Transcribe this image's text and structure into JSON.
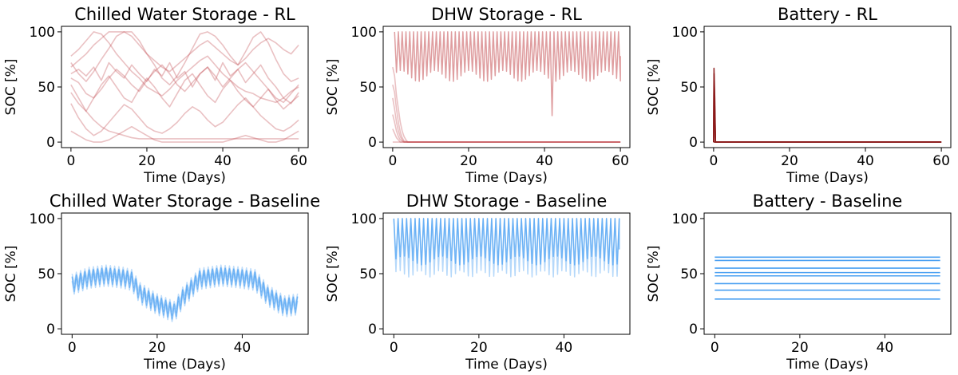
{
  "chart_data": [
    {
      "type": "line",
      "title": "Chilled Water Storage - RL",
      "xlabel": "Time (Days)",
      "ylabel": "SOC [%]",
      "xlim": [
        -2.5,
        62.5
      ],
      "ylim": [
        -5,
        105
      ],
      "xticks": [
        0,
        20,
        40,
        60
      ],
      "yticks": [
        0,
        50,
        100
      ],
      "color": "#c44e52",
      "series": [
        {
          "x": [
            0,
            2,
            4,
            6,
            8,
            10,
            12,
            14,
            16,
            18,
            20,
            22,
            24,
            26,
            28,
            30,
            32,
            34,
            36,
            38,
            40,
            42,
            44,
            46,
            48,
            50,
            52,
            54,
            56,
            58,
            60
          ],
          "y": [
            72,
            62,
            55,
            64,
            75,
            85,
            96,
            100,
            100,
            92,
            80,
            70,
            58,
            52,
            60,
            72,
            85,
            98,
            100,
            96,
            88,
            78,
            70,
            82,
            95,
            100,
            90,
            75,
            62,
            55,
            58
          ]
        },
        {
          "x": [
            0,
            2,
            4,
            6,
            8,
            10,
            12,
            14,
            16,
            18,
            20,
            22,
            24,
            26,
            28,
            30,
            32,
            34,
            36,
            38,
            40,
            42,
            44,
            46,
            48,
            50,
            52,
            54,
            56,
            58,
            60
          ],
          "y": [
            62,
            66,
            60,
            68,
            56,
            72,
            64,
            58,
            70,
            62,
            55,
            66,
            60,
            72,
            58,
            64,
            50,
            62,
            68,
            56,
            72,
            60,
            66,
            54,
            62,
            70,
            58,
            50,
            40,
            35,
            45
          ]
        },
        {
          "x": [
            0,
            2,
            4,
            6,
            8,
            10,
            12,
            14,
            16,
            18,
            20,
            22,
            24,
            26,
            28,
            30,
            32,
            34,
            36,
            38,
            40,
            42,
            44,
            46,
            48,
            50,
            52,
            54,
            56,
            58,
            60
          ],
          "y": [
            58,
            54,
            44,
            40,
            48,
            58,
            66,
            60,
            52,
            46,
            56,
            64,
            70,
            62,
            52,
            46,
            54,
            62,
            68,
            60,
            50,
            58,
            66,
            72,
            64,
            56,
            48,
            40,
            36,
            44,
            52
          ]
        },
        {
          "x": [
            0,
            2,
            4,
            6,
            8,
            10,
            12,
            14,
            16,
            18,
            20,
            22,
            24,
            26,
            28,
            30,
            32,
            34,
            36,
            38,
            40,
            42,
            44,
            46,
            48,
            50,
            52,
            54,
            56,
            58,
            60
          ],
          "y": [
            45,
            35,
            28,
            40,
            52,
            60,
            50,
            40,
            36,
            48,
            58,
            50,
            40,
            32,
            44,
            56,
            62,
            52,
            42,
            36,
            48,
            56,
            46,
            38,
            32,
            40,
            48,
            38,
            30,
            36,
            42
          ]
        },
        {
          "x": [
            0,
            2,
            4,
            6,
            8,
            10,
            12,
            14,
            16,
            18,
            20,
            22,
            24,
            26,
            28,
            30,
            32,
            34,
            36,
            38,
            40,
            42,
            44,
            46,
            48,
            50,
            52,
            54,
            56,
            58,
            60
          ],
          "y": [
            78,
            84,
            92,
            100,
            98,
            90,
            80,
            72,
            64,
            58,
            50,
            46,
            42,
            48,
            56,
            62,
            68,
            74,
            78,
            70,
            62,
            56,
            50,
            46,
            44,
            40,
            38,
            36,
            40,
            46,
            50
          ]
        },
        {
          "x": [
            0,
            2,
            4,
            6,
            8,
            10,
            12,
            14,
            16,
            18,
            20,
            22,
            24,
            26,
            28,
            30,
            32,
            34,
            36,
            38,
            40,
            42,
            44,
            46,
            48,
            50,
            52,
            54,
            56,
            58,
            60
          ],
          "y": [
            35,
            22,
            12,
            6,
            10,
            18,
            26,
            34,
            30,
            22,
            14,
            10,
            8,
            12,
            18,
            26,
            32,
            28,
            20,
            14,
            18,
            26,
            34,
            40,
            32,
            24,
            18,
            12,
            10,
            14,
            20
          ]
        },
        {
          "x": [
            0,
            2,
            4,
            6,
            8,
            10,
            12,
            14,
            16,
            18,
            20,
            22,
            24,
            26,
            28,
            30,
            32,
            34,
            36,
            38,
            40,
            42,
            44,
            46,
            48,
            50,
            52,
            54,
            56,
            58,
            60
          ],
          "y": [
            52,
            40,
            28,
            20,
            14,
            10,
            8,
            6,
            4,
            3,
            3,
            3,
            3,
            3,
            3,
            3,
            3,
            3,
            3,
            3,
            3,
            3,
            3,
            3,
            3,
            3,
            3,
            3,
            3,
            3,
            3
          ]
        },
        {
          "x": [
            0,
            2,
            4,
            6,
            8,
            10,
            12,
            14,
            16,
            18,
            20,
            22,
            24,
            26,
            28,
            30,
            32,
            34,
            36,
            38,
            40,
            42,
            44,
            46,
            48,
            50,
            52,
            54,
            56,
            58,
            60
          ],
          "y": [
            10,
            6,
            2,
            0,
            0,
            2,
            6,
            10,
            14,
            10,
            6,
            2,
            0,
            0,
            0,
            0,
            0,
            0,
            0,
            0,
            0,
            2,
            4,
            6,
            4,
            2,
            0,
            0,
            2,
            6,
            10
          ]
        },
        {
          "x": [
            0,
            2,
            4,
            6,
            8,
            10,
            12,
            14,
            16,
            18,
            20,
            22,
            24,
            26,
            28,
            30,
            32,
            34,
            36,
            38,
            40,
            42,
            44,
            46,
            48,
            50,
            52,
            54,
            56,
            58,
            60
          ],
          "y": [
            68,
            74,
            80,
            88,
            94,
            100,
            100,
            100,
            96,
            88,
            80,
            74,
            68,
            64,
            70,
            76,
            82,
            88,
            92,
            86,
            80,
            74,
            70,
            76,
            84,
            90,
            94,
            90,
            84,
            80,
            88
          ]
        }
      ]
    },
    {
      "type": "line",
      "title": "DHW Storage - RL",
      "xlabel": "Time (Days)",
      "ylabel": "SOC [%]",
      "xlim": [
        -2.5,
        62.5
      ],
      "ylim": [
        -5,
        105
      ],
      "xticks": [
        0,
        20,
        40,
        60
      ],
      "yticks": [
        0,
        50,
        100
      ],
      "color": "#c44e52",
      "oscillation": {
        "x_start": 0.5,
        "x_end": 60,
        "period_days": 1,
        "peak": 100,
        "trough_base": 60,
        "trough_amplitude": 5,
        "end_value": 78,
        "dip": {
          "x": 42,
          "y": 24
        }
      },
      "series": [
        {
          "x": [
            0,
            0.5,
            1,
            1.5,
            2,
            2.5,
            3,
            3.5,
            4,
            5,
            60
          ],
          "y": [
            68,
            60,
            42,
            30,
            18,
            10,
            5,
            2,
            0,
            0,
            0
          ]
        },
        {
          "x": [
            0,
            0.5,
            1,
            1.5,
            2,
            2.5,
            3,
            4,
            60
          ],
          "y": [
            52,
            45,
            30,
            18,
            9,
            4,
            1,
            0,
            0
          ]
        },
        {
          "x": [
            0,
            0.5,
            1,
            1.5,
            2,
            2.5,
            3,
            4,
            60
          ],
          "y": [
            40,
            30,
            18,
            10,
            5,
            2,
            0,
            0,
            0
          ]
        },
        {
          "x": [
            0,
            0.5,
            1,
            1.5,
            2,
            3,
            4,
            60
          ],
          "y": [
            25,
            18,
            10,
            5,
            2,
            0,
            0,
            0
          ]
        },
        {
          "x": [
            0,
            0.5,
            1,
            1.5,
            2,
            3,
            60
          ],
          "y": [
            12,
            8,
            4,
            2,
            0,
            0,
            0
          ]
        },
        {
          "x": [
            0,
            60
          ],
          "y": [
            0,
            0
          ]
        }
      ]
    },
    {
      "type": "line",
      "title": "Battery - RL",
      "xlabel": "Time (Days)",
      "ylabel": "SOC [%]",
      "xlim": [
        -2.5,
        62.5
      ],
      "ylim": [
        -5,
        105
      ],
      "xticks": [
        0,
        20,
        40,
        60
      ],
      "yticks": [
        0,
        50,
        100
      ],
      "color": "#8b1a1a",
      "series": [
        {
          "x": [
            0,
            0.1,
            0.3,
            0.5,
            60
          ],
          "y": [
            0,
            67,
            40,
            0,
            0
          ]
        },
        {
          "x": [
            0,
            0.1,
            0.3,
            0.5,
            60
          ],
          "y": [
            0,
            62,
            30,
            0,
            0
          ]
        },
        {
          "x": [
            0,
            0.1,
            0.3,
            0.5,
            60
          ],
          "y": [
            0,
            55,
            20,
            0,
            0
          ]
        },
        {
          "x": [
            0,
            60
          ],
          "y": [
            0,
            0
          ]
        }
      ]
    },
    {
      "type": "line",
      "title": "Chilled Water Storage - Baseline",
      "xlabel": "Time (Days)",
      "ylabel": "SOC [%]",
      "xlim": [
        -2.5,
        55.5
      ],
      "ylim": [
        -5,
        105
      ],
      "xticks": [
        0,
        20,
        40
      ],
      "yticks": [
        0,
        50,
        100
      ],
      "color": "#2a8ff0",
      "oscillation": {
        "x_start": 0,
        "x_end": 53,
        "period_days": 1,
        "amplitude": 7,
        "x": [
          0,
          4,
          8,
          12,
          14,
          16,
          20,
          24,
          26,
          30,
          35,
          40,
          43,
          46,
          50,
          53
        ],
        "y": [
          40,
          46,
          48,
          46,
          44,
          32,
          22,
          15,
          28,
          45,
          48,
          46,
          44,
          30,
          20,
          22
        ]
      },
      "series": [
        {
          "x": [
            0,
            4,
            8,
            12,
            14,
            16,
            20,
            24,
            26,
            30,
            35,
            40,
            43,
            46,
            50,
            53
          ],
          "y": [
            40,
            46,
            48,
            46,
            44,
            32,
            22,
            15,
            28,
            45,
            48,
            46,
            44,
            30,
            20,
            22
          ]
        },
        {
          "x": [
            0,
            4,
            8,
            12,
            14,
            16,
            20,
            24,
            26,
            30,
            35,
            40,
            43,
            46,
            50,
            53
          ],
          "y": [
            42,
            44,
            46,
            42,
            40,
            30,
            24,
            18,
            30,
            46,
            50,
            48,
            46,
            38,
            32,
            36
          ]
        },
        {
          "x": [
            0,
            4,
            8,
            12,
            14,
            16,
            20,
            24,
            26,
            30,
            35,
            40,
            43,
            46,
            50,
            53
          ],
          "y": [
            36,
            40,
            42,
            40,
            38,
            26,
            18,
            12,
            24,
            40,
            44,
            42,
            40,
            26,
            16,
            18
          ]
        },
        {
          "x": [
            0,
            4,
            8,
            12,
            14,
            16,
            20,
            24,
            26,
            30,
            35,
            40,
            43,
            46,
            50,
            53
          ],
          "y": [
            44,
            48,
            50,
            48,
            46,
            38,
            30,
            22,
            34,
            48,
            52,
            50,
            48,
            42,
            40,
            44
          ]
        }
      ]
    },
    {
      "type": "line",
      "title": "DHW Storage - Baseline",
      "xlabel": "Time (Days)",
      "ylabel": "SOC [%]",
      "xlim": [
        -2.5,
        55.5
      ],
      "ylim": [
        -5,
        105
      ],
      "xticks": [
        0,
        20,
        40
      ],
      "yticks": [
        0,
        50,
        100
      ],
      "color": "#2a8ff0",
      "oscillation": {
        "x_start": 0,
        "x_end": 53,
        "period_days": 1,
        "peak": 100,
        "trough_base": 62,
        "trough_amplitude": 4,
        "faint_trough": 50,
        "end_value": 72
      },
      "series": [
        {
          "x": [
            0,
            53
          ],
          "y": [
            100,
            100
          ]
        },
        {
          "x": [
            0,
            53
          ],
          "y": [
            62,
            62
          ]
        },
        {
          "x": [
            0,
            53
          ],
          "y": [
            52,
            52
          ]
        }
      ]
    },
    {
      "type": "line",
      "title": "Battery - Baseline",
      "xlabel": "Time (Days)",
      "ylabel": "SOC [%]",
      "xlim": [
        -2.5,
        55.5
      ],
      "ylim": [
        -5,
        105
      ],
      "xticks": [
        0,
        20,
        40
      ],
      "yticks": [
        0,
        50,
        100
      ],
      "color": "#2a8ff0",
      "series": [
        {
          "x": [
            0,
            53
          ],
          "y": [
            65,
            65
          ]
        },
        {
          "x": [
            0,
            53
          ],
          "y": [
            62,
            62
          ]
        },
        {
          "x": [
            0,
            53
          ],
          "y": [
            55,
            55
          ]
        },
        {
          "x": [
            0,
            53
          ],
          "y": [
            51,
            51
          ]
        },
        {
          "x": [
            0,
            53
          ],
          "y": [
            48,
            48
          ]
        },
        {
          "x": [
            0,
            53
          ],
          "y": [
            41,
            41
          ]
        },
        {
          "x": [
            0,
            53
          ],
          "y": [
            35,
            35
          ]
        },
        {
          "x": [
            0,
            53
          ],
          "y": [
            27,
            27
          ]
        }
      ]
    }
  ]
}
